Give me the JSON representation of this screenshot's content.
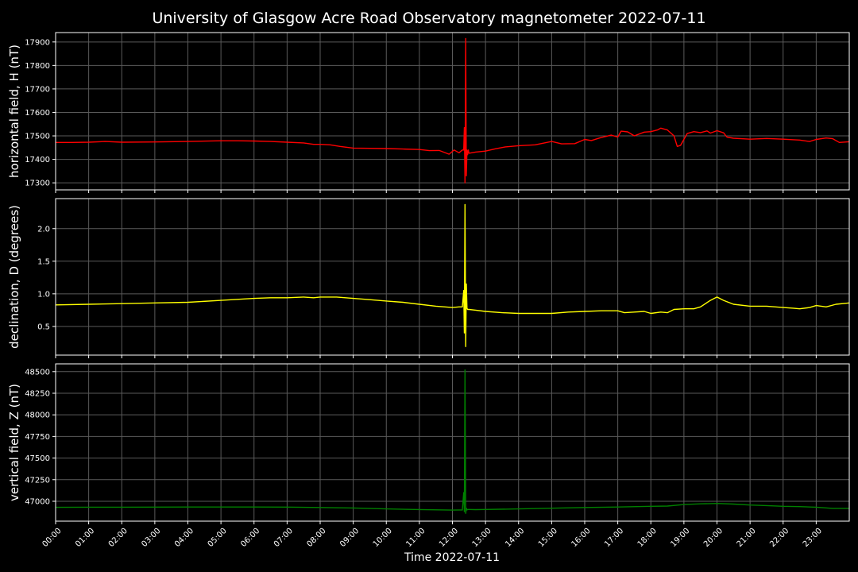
{
  "title": "University of Glasgow Acre Road Observatory magnetometer 2022-07-11",
  "xlabel": "Time 2022-07-11",
  "x_ticks": [
    "00:00",
    "01:00",
    "02:00",
    "03:00",
    "04:00",
    "05:00",
    "06:00",
    "07:00",
    "08:00",
    "09:00",
    "10:00",
    "11:00",
    "12:00",
    "13:00",
    "14:00",
    "15:00",
    "16:00",
    "17:00",
    "18:00",
    "19:00",
    "20:00",
    "21:00",
    "22:00",
    "23:00"
  ],
  "colors": {
    "background": "#000000",
    "axes_edge": "#ffffff",
    "grid": "#5a5a5a",
    "text": "#ffffff"
  },
  "chart_data": [
    {
      "type": "line",
      "ylabel": "horizontal field, H (nT)",
      "color": "#ff0000",
      "grid": true,
      "xlim": [
        0,
        24
      ],
      "ylim": [
        17270,
        17940
      ],
      "yticks": [
        17300,
        17400,
        17500,
        17600,
        17700,
        17800,
        17900
      ],
      "series": [
        {
          "x": [
            0,
            0.5,
            1,
            1.5,
            2,
            3,
            4,
            5,
            5.5,
            6,
            6.5,
            7,
            7.5,
            7.8,
            8,
            8.3,
            8.6,
            9,
            9.5,
            10,
            10.5,
            11,
            11.3,
            11.6,
            11.9,
            12.05,
            12.2,
            12.3,
            12.34,
            12.36,
            12.38,
            12.4,
            12.42,
            12.44,
            12.46,
            12.48,
            12.5,
            12.7,
            13,
            13.3,
            13.6,
            14,
            14.5,
            15,
            15.3,
            15.7,
            16,
            16.2,
            16.5,
            16.8,
            17,
            17.1,
            17.3,
            17.5,
            17.8,
            18,
            18.2,
            18.3,
            18.5,
            18.7,
            18.8,
            18.9,
            19.1,
            19.3,
            19.5,
            19.7,
            19.8,
            20,
            20.2,
            20.3,
            20.5,
            21,
            21.5,
            22,
            22.5,
            22.8,
            23,
            23.3,
            23.5,
            23.7,
            24
          ],
          "y": [
            17472,
            17472,
            17473,
            17476,
            17473,
            17474,
            17476,
            17479,
            17479,
            17478,
            17476,
            17473,
            17470,
            17464,
            17464,
            17462,
            17455,
            17448,
            17447,
            17446,
            17444,
            17442,
            17437,
            17438,
            17422,
            17440,
            17428,
            17440,
            17440,
            17535,
            17300,
            17915,
            17330,
            17440,
            17420,
            17440,
            17426,
            17431,
            17435,
            17445,
            17453,
            17458,
            17462,
            17476,
            17466,
            17467,
            17485,
            17480,
            17493,
            17503,
            17495,
            17520,
            17517,
            17500,
            17516,
            17518,
            17525,
            17533,
            17525,
            17500,
            17455,
            17460,
            17510,
            17518,
            17514,
            17521,
            17512,
            17522,
            17513,
            17495,
            17490,
            17486,
            17489,
            17486,
            17482,
            17476,
            17485,
            17491,
            17488,
            17472,
            17475
          ]
        }
      ]
    },
    {
      "type": "line",
      "ylabel": "declination, D (degrees)",
      "color": "#ffff00",
      "grid": true,
      "xlim": [
        0,
        24
      ],
      "ylim": [
        0.06,
        2.46
      ],
      "yticks": [
        0.5,
        1.0,
        1.5,
        2.0
      ],
      "ytick_labels": [
        "0.5",
        "1.0",
        "1.5",
        "2.0"
      ],
      "series": [
        {
          "x": [
            0,
            1,
            2,
            3,
            4,
            5,
            6,
            6.5,
            7,
            7.5,
            7.8,
            8,
            8.5,
            9,
            9.5,
            10,
            10.5,
            11,
            11.5,
            12,
            12.2,
            12.3,
            12.34,
            12.36,
            12.38,
            12.4,
            12.42,
            12.44,
            12.46,
            12.5,
            12.7,
            13,
            13.5,
            14,
            14.5,
            15,
            15.5,
            16,
            16.5,
            17,
            17.2,
            17.5,
            17.8,
            18,
            18.3,
            18.5,
            18.7,
            19,
            19.3,
            19.5,
            19.8,
            20,
            20.2,
            20.5,
            21,
            21.5,
            22,
            22.3,
            22.5,
            22.8,
            23,
            23.3,
            23.6,
            24
          ],
          "y": [
            0.83,
            0.84,
            0.85,
            0.86,
            0.87,
            0.9,
            0.93,
            0.94,
            0.94,
            0.95,
            0.94,
            0.95,
            0.95,
            0.93,
            0.91,
            0.89,
            0.87,
            0.84,
            0.81,
            0.79,
            0.8,
            0.8,
            1.05,
            0.4,
            2.37,
            0.19,
            1.15,
            0.78,
            0.76,
            0.76,
            0.75,
            0.73,
            0.71,
            0.7,
            0.7,
            0.7,
            0.72,
            0.73,
            0.74,
            0.74,
            0.71,
            0.72,
            0.73,
            0.7,
            0.72,
            0.71,
            0.76,
            0.77,
            0.77,
            0.8,
            0.9,
            0.95,
            0.9,
            0.84,
            0.81,
            0.81,
            0.79,
            0.78,
            0.77,
            0.79,
            0.82,
            0.8,
            0.84,
            0.86
          ]
        }
      ]
    },
    {
      "type": "line",
      "ylabel": "vertical field, Z (nT)",
      "color": "#008000",
      "grid": true,
      "xlim": [
        0,
        24
      ],
      "ylim": [
        46770,
        48590
      ],
      "yticks": [
        47000,
        47250,
        47500,
        47750,
        48000,
        48250,
        48500
      ],
      "series": [
        {
          "x": [
            0,
            1,
            2,
            3,
            4,
            5,
            6,
            7,
            8,
            9,
            10,
            11,
            12,
            12.2,
            12.3,
            12.34,
            12.36,
            12.38,
            12.4,
            12.42,
            12.44,
            12.46,
            12.5,
            12.7,
            13,
            14,
            15,
            16,
            17,
            18,
            18.5,
            19,
            19.5,
            20,
            20.5,
            21,
            21.5,
            22,
            22.5,
            23,
            23.5,
            24
          ],
          "y": [
            46930,
            46932,
            46932,
            46933,
            46934,
            46934,
            46934,
            46933,
            46928,
            46923,
            46912,
            46904,
            46898,
            46900,
            46900,
            47100,
            46880,
            48520,
            46860,
            46920,
            46900,
            46905,
            46905,
            46903,
            46905,
            46912,
            46920,
            46928,
            46934,
            46942,
            46945,
            46962,
            46970,
            46975,
            46968,
            46957,
            46950,
            46942,
            46938,
            46932,
            46918,
            46918
          ]
        }
      ]
    }
  ]
}
